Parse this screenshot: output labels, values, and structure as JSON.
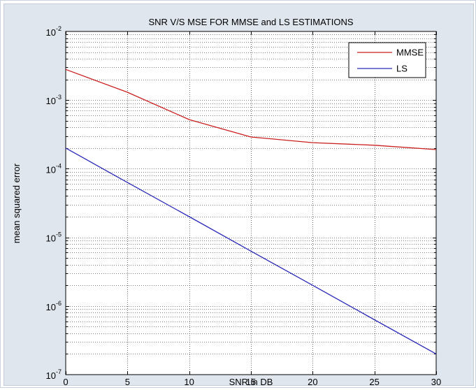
{
  "chart_data": {
    "type": "line",
    "title": "SNR V/S MSE FOR MMSE and LS ESTIMATIONS",
    "xlabel": "SNR in DB",
    "ylabel": "mean squared error",
    "xlim": [
      0,
      30
    ],
    "ylim": [
      1e-07,
      0.01
    ],
    "yscale": "log",
    "grid": true,
    "legend_position": "top-right",
    "x_ticks": [
      0,
      5,
      10,
      15,
      20,
      25,
      30
    ],
    "x_tick_labels": [
      "0",
      "5",
      "10",
      "15",
      "20",
      "25",
      "30"
    ],
    "y_ticks": [
      {
        "value": 1e-07,
        "base": "10",
        "exp": "-7"
      },
      {
        "value": 1e-06,
        "base": "10",
        "exp": "-6"
      },
      {
        "value": 1e-05,
        "base": "10",
        "exp": "-5"
      },
      {
        "value": 0.0001,
        "base": "10",
        "exp": "-4"
      },
      {
        "value": 0.001,
        "base": "10",
        "exp": "-3"
      },
      {
        "value": 0.01,
        "base": "10",
        "exp": "-2"
      }
    ],
    "series": [
      {
        "name": "MMSE",
        "color": "#cc1f1f",
        "x": [
          0,
          5,
          10,
          15,
          20,
          25,
          30
        ],
        "y": [
          0.0028,
          0.0013,
          0.00052,
          0.00029,
          0.00024,
          0.00022,
          0.00019
        ]
      },
      {
        "name": "LS",
        "color": "#2a2ab8",
        "x": [
          0,
          5,
          10,
          15,
          20,
          25,
          30
        ],
        "y": [
          0.0002,
          6.3e-05,
          2e-05,
          6.3e-06,
          2e-06,
          6.3e-07,
          2e-07
        ]
      }
    ]
  }
}
